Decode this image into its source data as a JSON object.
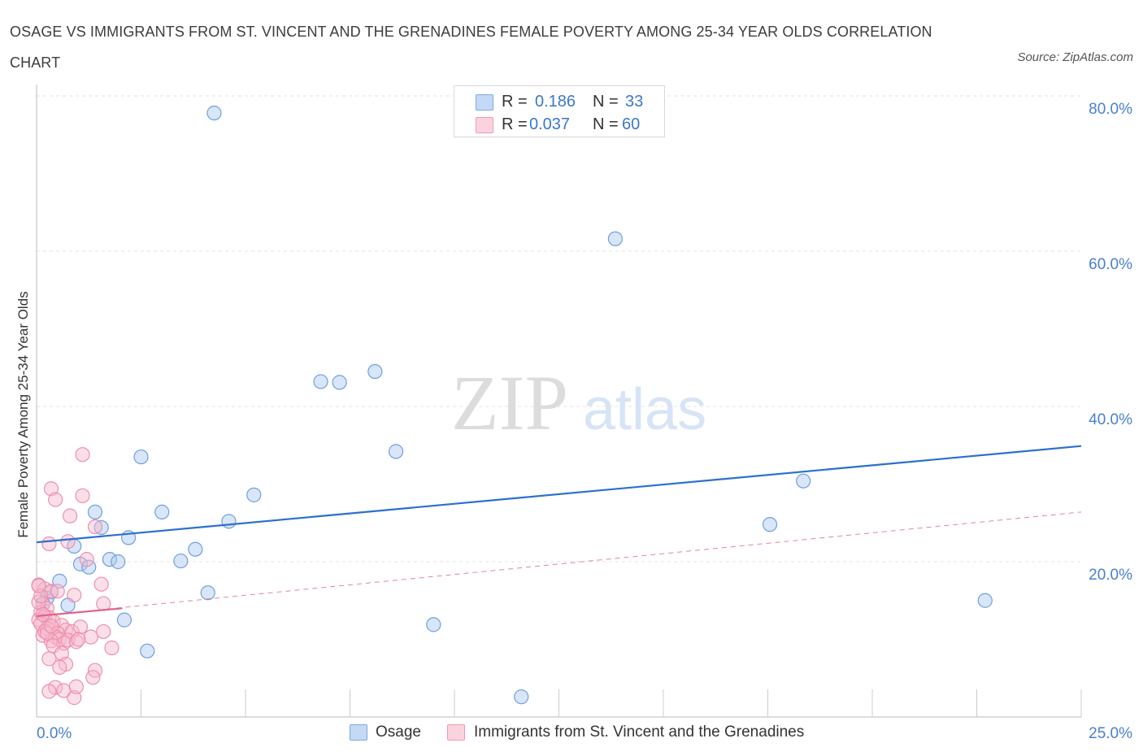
{
  "title": "OSAGE VS IMMIGRANTS FROM ST. VINCENT AND THE GRENADINES FEMALE POVERTY AMONG 25-34 YEAR OLDS CORRELATION CHART",
  "source": "Source: ZipAtlas.com",
  "watermark": {
    "zip": "ZIP",
    "atlas": "atlas"
  },
  "legend_top": {
    "rows": [
      {
        "r_label": "R =",
        "r_value": "0.186",
        "n_label": "N =",
        "n_value": "33",
        "color": "#a9c8f0"
      },
      {
        "r_label": "R =",
        "r_value": "0.037",
        "n_label": "N =",
        "n_value": "60",
        "color": "#f7b9cc"
      }
    ]
  },
  "legend_bottom": {
    "items": [
      {
        "label": "Osage",
        "color": "#a9c8f0"
      },
      {
        "label": "Immigrants from St. Vincent and the Grenadines",
        "color": "#f7b9cc"
      }
    ]
  },
  "chart_data": {
    "type": "scatter",
    "title": "OSAGE VS IMMIGRANTS FROM ST. VINCENT AND THE GRENADINES FEMALE POVERTY AMONG 25-34 YEAR OLDS CORRELATION CHART",
    "xlabel": "",
    "ylabel": "Female Poverty Among 25-34 Year Olds",
    "xlim": [
      0,
      25
    ],
    "ylim": [
      0,
      80
    ],
    "x_ticks": [
      "0.0%",
      "25.0%"
    ],
    "y_ticks": [
      {
        "value": 20,
        "label": "20.0%"
      },
      {
        "value": 40,
        "label": "40.0%"
      },
      {
        "value": 60,
        "label": "60.0%"
      },
      {
        "value": 80,
        "label": "80.0%"
      }
    ],
    "grid": true,
    "series": [
      {
        "name": "Osage",
        "color": "#a9c8f0",
        "stroke": "#6f9fe0",
        "trend": {
          "x": [
            0,
            25
          ],
          "y": [
            22.5,
            34.9
          ],
          "color": "#2c6fcf",
          "style": "solid"
        },
        "points": [
          [
            4.25,
            77.8
          ],
          [
            13.85,
            61.6
          ],
          [
            8.1,
            44.5
          ],
          [
            6.8,
            43.2
          ],
          [
            7.25,
            43.1
          ],
          [
            8.6,
            34.2
          ],
          [
            2.5,
            33.5
          ],
          [
            18.35,
            30.4
          ],
          [
            5.2,
            28.6
          ],
          [
            1.4,
            26.4
          ],
          [
            3.0,
            26.4
          ],
          [
            4.6,
            25.2
          ],
          [
            17.55,
            24.8
          ],
          [
            1.55,
            24.4
          ],
          [
            2.2,
            23.1
          ],
          [
            0.9,
            22.0
          ],
          [
            3.8,
            21.6
          ],
          [
            1.75,
            20.3
          ],
          [
            1.95,
            20.0
          ],
          [
            3.45,
            20.1
          ],
          [
            1.05,
            19.7
          ],
          [
            1.25,
            19.3
          ],
          [
            0.55,
            17.5
          ],
          [
            0.35,
            16.1
          ],
          [
            4.1,
            16.0
          ],
          [
            0.25,
            15.3
          ],
          [
            0.75,
            14.4
          ],
          [
            22.7,
            15.0
          ],
          [
            2.1,
            12.5
          ],
          [
            9.5,
            11.9
          ],
          [
            2.65,
            8.5
          ],
          [
            11.6,
            2.6
          ],
          [
            0.15,
            14.6
          ]
        ]
      },
      {
        "name": "Immigrants from St. Vincent and the Grenadines",
        "color": "#f7b9cc",
        "stroke": "#ee8fae",
        "trend": {
          "x": [
            0,
            2.05
          ],
          "y": [
            13.0,
            14.0
          ],
          "color": "#e0628c",
          "style": "solid"
        },
        "trend_ext": {
          "x": [
            0,
            25
          ],
          "y": [
            13.0,
            26.4
          ],
          "color": "#e0628c",
          "style": "dashed"
        },
        "points": [
          [
            1.1,
            33.8
          ],
          [
            0.35,
            29.4
          ],
          [
            0.45,
            28.0
          ],
          [
            1.1,
            28.5
          ],
          [
            0.8,
            25.9
          ],
          [
            1.4,
            24.5
          ],
          [
            0.3,
            22.3
          ],
          [
            0.75,
            22.6
          ],
          [
            1.2,
            20.3
          ],
          [
            0.05,
            17.0
          ],
          [
            0.2,
            16.5
          ],
          [
            0.35,
            16.2
          ],
          [
            1.55,
            17.1
          ],
          [
            0.9,
            15.7
          ],
          [
            0.15,
            14.5
          ],
          [
            0.25,
            14.0
          ],
          [
            0.1,
            13.5
          ],
          [
            0.2,
            13.0
          ],
          [
            0.05,
            12.5
          ],
          [
            0.3,
            12.8
          ],
          [
            0.1,
            12.0
          ],
          [
            0.4,
            12.3
          ],
          [
            0.6,
            11.8
          ],
          [
            0.7,
            11.2
          ],
          [
            0.85,
            11.0
          ],
          [
            0.25,
            11.4
          ],
          [
            0.5,
            10.8
          ],
          [
            0.15,
            10.5
          ],
          [
            0.45,
            10.3
          ],
          [
            0.55,
            10.0
          ],
          [
            0.35,
            9.8
          ],
          [
            0.65,
            9.5
          ],
          [
            0.75,
            9.9
          ],
          [
            0.95,
            9.7
          ],
          [
            1.05,
            11.6
          ],
          [
            1.3,
            10.3
          ],
          [
            0.4,
            9.2
          ],
          [
            0.2,
            11.0
          ],
          [
            0.6,
            8.2
          ],
          [
            0.3,
            7.5
          ],
          [
            0.7,
            6.8
          ],
          [
            0.55,
            6.4
          ],
          [
            1.4,
            6.0
          ],
          [
            1.35,
            5.1
          ],
          [
            0.45,
            3.8
          ],
          [
            0.3,
            3.3
          ],
          [
            0.9,
            2.5
          ],
          [
            0.65,
            3.4
          ],
          [
            0.95,
            3.9
          ],
          [
            1.0,
            10.0
          ],
          [
            1.6,
            14.6
          ],
          [
            1.8,
            8.9
          ],
          [
            1.6,
            11.0
          ],
          [
            0.05,
            14.8
          ],
          [
            0.1,
            15.6
          ],
          [
            0.05,
            16.9
          ],
          [
            0.5,
            16.2
          ],
          [
            0.15,
            13.2
          ],
          [
            0.25,
            10.8
          ],
          [
            0.35,
            11.7
          ]
        ]
      }
    ]
  }
}
